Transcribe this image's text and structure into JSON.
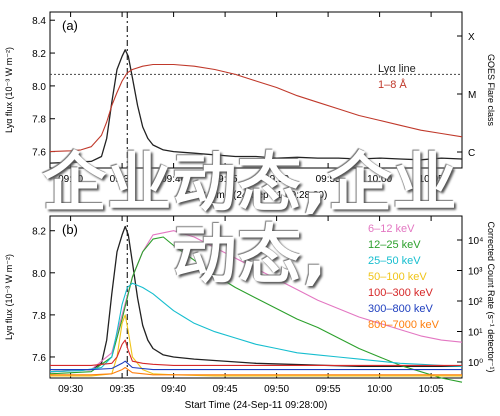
{
  "chart_data": [
    {
      "panel_label": "(a)",
      "type": "line",
      "xlabel": "Start Time (24-Sep-11 09:28:00)",
      "ylabel": "Lyα flux (10⁻³ W m⁻²)",
      "right_axis_label": "GOES Flare class",
      "x_ticks": [
        "09:30",
        "09:35",
        "09:40",
        "09:45",
        "09:50",
        "09:55",
        "10:00",
        "10:05"
      ],
      "y_ticks": [
        "7.6",
        "7.8",
        "8.0",
        "8.2",
        "8.4"
      ],
      "right_ticks": [
        "X",
        "M",
        "C"
      ],
      "xlim": [
        0,
        40
      ],
      "ylim": [
        7.5,
        8.45
      ],
      "vline_x": 7.5,
      "hline_y": 8.07,
      "legend": [
        "Lyα line",
        "1–8 Å"
      ],
      "series": [
        {
          "name": "Lyα line",
          "color": "#222222",
          "x": [
            0,
            2,
            4,
            5,
            5.5,
            6,
            6.5,
            7,
            7.3,
            7.6,
            8,
            8.5,
            9,
            9.5,
            10,
            11,
            12,
            14,
            16,
            18,
            20,
            22,
            24,
            26,
            28,
            30,
            32,
            34,
            36,
            38,
            40
          ],
          "y": [
            7.53,
            7.535,
            7.54,
            7.57,
            7.68,
            7.9,
            8.1,
            8.18,
            8.22,
            8.18,
            8.05,
            7.88,
            7.75,
            7.68,
            7.64,
            7.61,
            7.6,
            7.59,
            7.58,
            7.57,
            7.57,
            7.56,
            7.565,
            7.56,
            7.56,
            7.555,
            7.56,
            7.555,
            7.55,
            7.56,
            7.555
          ]
        },
        {
          "name": "1–8 Å",
          "color": "#c0392b",
          "x": [
            0,
            2,
            3,
            4,
            5,
            5.5,
            6,
            6.5,
            7,
            7.5,
            8,
            9,
            10,
            12,
            14,
            16,
            18,
            20,
            22,
            24,
            26,
            28,
            30,
            32,
            34,
            36,
            38,
            40
          ],
          "y": [
            7.6,
            7.605,
            7.61,
            7.63,
            7.7,
            7.78,
            7.88,
            7.96,
            8.03,
            8.08,
            8.1,
            8.12,
            8.13,
            8.13,
            8.12,
            8.1,
            8.07,
            8.03,
            7.99,
            7.94,
            7.9,
            7.86,
            7.82,
            7.79,
            7.76,
            7.73,
            7.71,
            7.69
          ]
        }
      ]
    },
    {
      "panel_label": "(b)",
      "type": "line",
      "xlabel": "Start Time (24-Sep-11 09:28:00)",
      "ylabel": "Lyα flux (10⁻³ W m⁻²)",
      "right_axis_label": "Corrected Count Rate (s⁻¹ detector⁻¹)",
      "x_ticks": [
        "09:30",
        "09:35",
        "09:40",
        "09:45",
        "09:50",
        "09:55",
        "10:00",
        "10:05"
      ],
      "y_ticks": [
        "7.6",
        "7.8",
        "8.0",
        "8.2"
      ],
      "right_ticks": [
        "10⁴",
        "10³",
        "10²",
        "10¹",
        "10⁰"
      ],
      "xlim": [
        0,
        40
      ],
      "ylim": [
        7.5,
        8.27
      ],
      "vline_x": 7.5,
      "series": [
        {
          "name": "Lyα",
          "color": "#222222",
          "x": [
            0,
            4,
            5,
            5.5,
            6,
            6.5,
            7,
            7.3,
            7.6,
            8,
            8.5,
            9,
            9.5,
            10,
            11,
            12,
            14,
            20,
            30,
            40
          ],
          "y": [
            7.53,
            7.54,
            7.57,
            7.68,
            7.9,
            8.1,
            8.18,
            8.22,
            8.18,
            8.05,
            7.88,
            7.75,
            7.68,
            7.64,
            7.61,
            7.6,
            7.59,
            7.57,
            7.555,
            7.555
          ]
        },
        {
          "name": "6–12 keV",
          "color": "#e377c2",
          "x": [
            0,
            4,
            6,
            7,
            8,
            9,
            10,
            12,
            14,
            16,
            18,
            20,
            22,
            24,
            26,
            28,
            30,
            32,
            34,
            36,
            38,
            40
          ],
          "y": [
            7.53,
            7.54,
            7.62,
            7.8,
            7.98,
            8.1,
            8.18,
            8.2,
            8.17,
            8.12,
            8.07,
            8.02,
            7.97,
            7.92,
            7.87,
            7.83,
            7.79,
            7.76,
            7.73,
            7.7,
            7.68,
            7.67
          ]
        },
        {
          "name": "12–25 keV",
          "color": "#2ca02c",
          "x": [
            0,
            4,
            6,
            7,
            8,
            9,
            10,
            11,
            12,
            14,
            16,
            18,
            20,
            22,
            24,
            26,
            28,
            30,
            32,
            34,
            36,
            38,
            40
          ],
          "y": [
            7.52,
            7.53,
            7.6,
            7.78,
            7.98,
            8.1,
            8.16,
            8.17,
            8.13,
            8.06,
            7.99,
            7.93,
            7.88,
            7.83,
            7.78,
            7.74,
            7.69,
            7.64,
            7.6,
            7.56,
            7.53,
            7.5,
            7.48
          ]
        },
        {
          "name": "25–50 keV",
          "color": "#17becf",
          "x": [
            0,
            3,
            5,
            6,
            6.5,
            7,
            7.5,
            8,
            9,
            10,
            11,
            12,
            13,
            14,
            16,
            18,
            20,
            22,
            24,
            26,
            28,
            30,
            32,
            34,
            36,
            38,
            40
          ],
          "y": [
            7.53,
            7.535,
            7.55,
            7.6,
            7.72,
            7.85,
            7.93,
            7.95,
            7.93,
            7.9,
            7.86,
            7.82,
            7.79,
            7.76,
            7.72,
            7.69,
            7.66,
            7.64,
            7.62,
            7.61,
            7.6,
            7.59,
            7.58,
            7.57,
            7.565,
            7.56,
            7.555
          ]
        },
        {
          "name": "50–100 keV",
          "color": "#f0c419",
          "x": [
            0,
            4,
            6,
            6.5,
            7,
            7.3,
            7.6,
            8,
            9,
            10,
            12,
            16,
            20,
            24,
            28,
            32,
            36,
            40
          ],
          "y": [
            7.51,
            7.51,
            7.52,
            7.6,
            7.76,
            7.8,
            7.72,
            7.6,
            7.54,
            7.52,
            7.515,
            7.51,
            7.51,
            7.51,
            7.51,
            7.51,
            7.51,
            7.51
          ]
        },
        {
          "name": "100–300 keV",
          "color": "#d62728",
          "x": [
            0,
            4,
            6,
            6.5,
            7,
            7.3,
            7.6,
            8,
            9,
            10,
            12,
            16,
            20,
            24,
            28,
            32,
            36,
            40
          ],
          "y": [
            7.56,
            7.56,
            7.57,
            7.6,
            7.66,
            7.68,
            7.63,
            7.58,
            7.57,
            7.565,
            7.56,
            7.56,
            7.56,
            7.56,
            7.56,
            7.56,
            7.56,
            7.56
          ]
        },
        {
          "name": "300–800 keV",
          "color": "#1f3fbf",
          "x": [
            0,
            4,
            6,
            7,
            7.3,
            8,
            10,
            14,
            20,
            26,
            32,
            40
          ],
          "y": [
            7.54,
            7.54,
            7.545,
            7.57,
            7.58,
            7.55,
            7.54,
            7.54,
            7.54,
            7.54,
            7.54,
            7.54
          ]
        },
        {
          "name": "800–7000 keV",
          "color": "#ff7f0e",
          "x": [
            0,
            4,
            6,
            7,
            7.3,
            8,
            10,
            14,
            20,
            26,
            32,
            40
          ],
          "y": [
            7.515,
            7.515,
            7.52,
            7.54,
            7.55,
            7.525,
            7.515,
            7.515,
            7.515,
            7.515,
            7.515,
            7.515
          ]
        }
      ]
    }
  ],
  "overlay": {
    "line1": "企业动态,企业",
    "line2": "动态,"
  }
}
